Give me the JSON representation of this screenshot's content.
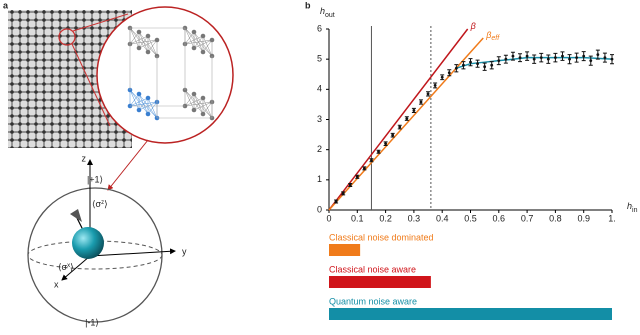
{
  "panel_a": {
    "label": "a",
    "ket_up": "|+1⟩",
    "ket_down": "|-1⟩",
    "axis_z": "z",
    "axis_y": "y",
    "axis_x": "x",
    "sigma_z": {
      "main": "⟨σ",
      "sup": "z",
      "end": "⟩"
    },
    "sigma_x": {
      "main": "⟨σ",
      "sup": "x",
      "end": "⟩"
    }
  },
  "chart_data": {
    "type": "scatter",
    "label": "b",
    "ylabel": "h",
    "ylabel_sub": "out",
    "xlabel": "h",
    "xlabel_sub": "in",
    "xlim": [
      0,
      1
    ],
    "ylim": [
      0,
      6
    ],
    "xticks": [
      0,
      0.1,
      0.2,
      0.3,
      0.4,
      0.5,
      0.6,
      0.7,
      0.8,
      0.9,
      {
        "value": 1,
        "label": "1."
      }
    ],
    "yticks": [
      0,
      1,
      2,
      3,
      4,
      5,
      6
    ],
    "vlines": [
      {
        "x": 0.15,
        "style": "solid"
      },
      {
        "x": 0.36,
        "style": "dotted"
      }
    ],
    "lines": [
      {
        "name": "β",
        "color": "#c0171c",
        "x": [
          0,
          0.49
        ],
        "values": [
          0,
          6
        ]
      },
      {
        "name": "β",
        "name_sub": "eff",
        "color": "#f07b1a",
        "x": [
          0,
          0.545
        ],
        "values": [
          0,
          5.7
        ]
      },
      {
        "color": "#1b8fa8",
        "x": [
          0.45,
          0.5,
          0.55,
          0.6,
          0.7,
          0.8,
          0.9,
          1.0
        ],
        "values": [
          4.7,
          4.85,
          4.9,
          4.95,
          5.05,
          5.05,
          5.05,
          5.0
        ]
      }
    ],
    "points": {
      "color": "#111111",
      "x": [
        0.025,
        0.05,
        0.075,
        0.1,
        0.125,
        0.15,
        0.175,
        0.2,
        0.225,
        0.25,
        0.275,
        0.3,
        0.325,
        0.35,
        0.375,
        0.4,
        0.425,
        0.45,
        0.475,
        0.5,
        0.525,
        0.55,
        0.575,
        0.6,
        0.625,
        0.65,
        0.675,
        0.7,
        0.725,
        0.75,
        0.775,
        0.8,
        0.825,
        0.85,
        0.875,
        0.9,
        0.925,
        0.95,
        0.975,
        1.0
      ],
      "values": [
        0.28,
        0.55,
        0.83,
        1.1,
        1.38,
        1.65,
        1.93,
        2.2,
        2.48,
        2.75,
        3.03,
        3.3,
        3.58,
        3.85,
        4.13,
        4.4,
        4.55,
        4.7,
        4.8,
        4.9,
        4.85,
        4.75,
        4.8,
        4.95,
        5.0,
        5.1,
        5.05,
        5.1,
        5.0,
        5.05,
        5.0,
        5.05,
        5.1,
        5.0,
        5.05,
        5.1,
        4.95,
        5.15,
        5.05,
        5.0
      ],
      "errors": [
        0.05,
        0.05,
        0.05,
        0.05,
        0.05,
        0.05,
        0.05,
        0.06,
        0.06,
        0.06,
        0.06,
        0.07,
        0.07,
        0.07,
        0.08,
        0.08,
        0.1,
        0.12,
        0.12,
        0.12,
        0.12,
        0.12,
        0.12,
        0.13,
        0.13,
        0.13,
        0.13,
        0.14,
        0.14,
        0.14,
        0.14,
        0.14,
        0.14,
        0.15,
        0.15,
        0.15,
        0.15,
        0.15,
        0.15,
        0.15
      ]
    },
    "ranges": [
      {
        "label": "Classical noise dominated",
        "color": "#f07b1a",
        "x": [
          0,
          0.11
        ]
      },
      {
        "label": "Classical noise aware",
        "color": "#d0141a",
        "x": [
          0,
          0.36
        ]
      },
      {
        "label": "Quantum noise aware",
        "color": "#138ea6",
        "x": [
          0,
          1.0
        ]
      }
    ]
  }
}
